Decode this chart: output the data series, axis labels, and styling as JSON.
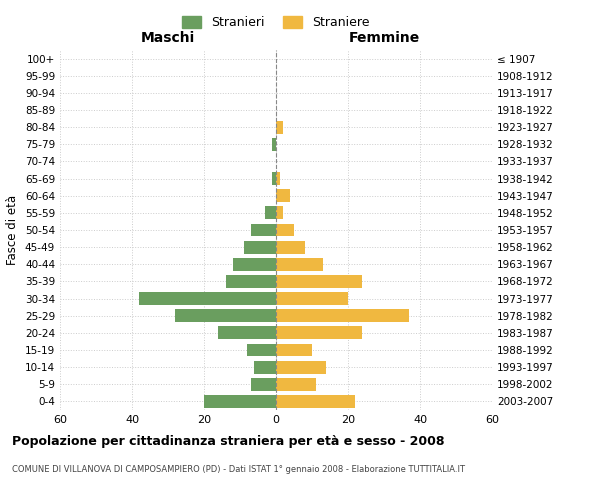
{
  "age_groups": [
    "0-4",
    "5-9",
    "10-14",
    "15-19",
    "20-24",
    "25-29",
    "30-34",
    "35-39",
    "40-44",
    "45-49",
    "50-54",
    "55-59",
    "60-64",
    "65-69",
    "70-74",
    "75-79",
    "80-84",
    "85-89",
    "90-94",
    "95-99",
    "100+"
  ],
  "birth_years": [
    "2003-2007",
    "1998-2002",
    "1993-1997",
    "1988-1992",
    "1983-1987",
    "1978-1982",
    "1973-1977",
    "1968-1972",
    "1963-1967",
    "1958-1962",
    "1953-1957",
    "1948-1952",
    "1943-1947",
    "1938-1942",
    "1933-1937",
    "1928-1932",
    "1923-1927",
    "1918-1922",
    "1913-1917",
    "1908-1912",
    "≤ 1907"
  ],
  "maschi": [
    20,
    7,
    6,
    8,
    16,
    28,
    38,
    14,
    12,
    9,
    7,
    3,
    0,
    1,
    0,
    1,
    0,
    0,
    0,
    0,
    0
  ],
  "femmine": [
    22,
    11,
    14,
    10,
    24,
    37,
    20,
    24,
    13,
    8,
    5,
    2,
    4,
    1,
    0,
    0,
    2,
    0,
    0,
    0,
    0
  ],
  "maschi_color": "#6a9e5f",
  "femmine_color": "#f0b840",
  "background_color": "#ffffff",
  "grid_color": "#cccccc",
  "title": "Popolazione per cittadinanza straniera per età e sesso - 2008",
  "subtitle": "COMUNE DI VILLANOVA DI CAMPOSAMPIERO (PD) - Dati ISTAT 1° gennaio 2008 - Elaborazione TUTTITALIA.IT",
  "xlabel_left": "Maschi",
  "xlabel_right": "Femmine",
  "ylabel": "Fasce di età",
  "legend_stranieri": "Stranieri",
  "legend_straniere": "Straniere",
  "xlim": 60
}
